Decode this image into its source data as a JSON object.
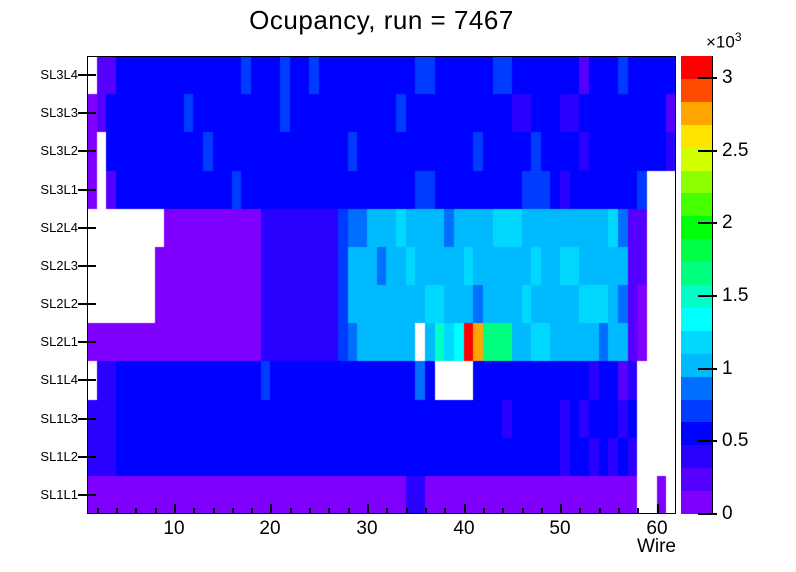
{
  "title": "Ocupancy, run = 7467",
  "chart_data": {
    "type": "heatmap",
    "title": "Ocupancy, run = 7467",
    "xlabel": "Wire",
    "x_range": [
      1,
      62
    ],
    "x_major_ticks": [
      10,
      20,
      30,
      40,
      50,
      60
    ],
    "x_minor_tick_step": 2,
    "grid": false,
    "empty_bins_color": "#ffffff",
    "frame_color": "#000000",
    "background_color": "#ffffff",
    "colorbar": {
      "scale_label_base": "×10",
      "scale_label_exp": "3",
      "tick_labels": [
        "0",
        "0.5",
        "1",
        "1.5",
        "2",
        "2.5",
        "3"
      ],
      "tick_values": [
        0,
        500,
        1000,
        1500,
        2000,
        2500,
        3000
      ],
      "zmin": 0,
      "zmax": 3150,
      "palette_bottom_to_top": [
        "#7f00ff",
        "#5500ff",
        "#2a00ff",
        "#0002ff",
        "#003cff",
        "#006eff",
        "#00baff",
        "#00d8ff",
        "#00ffff",
        "#00ffc8",
        "#00ff7f",
        "#00ff46",
        "#00ff0b",
        "#46ff00",
        "#8cff00",
        "#d2ff00",
        "#ffe400",
        "#ffa500",
        "#ff4b00",
        "#ff0000"
      ]
    },
    "rows": [
      {
        "label": "SL3L4",
        "values": [
          null,
          250,
          250,
          560,
          560,
          560,
          560,
          560,
          560,
          560,
          560,
          560,
          560,
          560,
          560,
          560,
          720,
          560,
          560,
          560,
          720,
          560,
          560,
          720,
          560,
          560,
          560,
          560,
          560,
          560,
          560,
          560,
          560,
          560,
          720,
          720,
          560,
          560,
          560,
          560,
          560,
          560,
          720,
          720,
          560,
          560,
          560,
          560,
          560,
          560,
          560,
          250,
          560,
          560,
          560,
          720,
          560,
          560,
          560,
          560,
          560
        ]
      },
      {
        "label": "SL3L3",
        "values": [
          80,
          250,
          560,
          560,
          560,
          560,
          560,
          560,
          560,
          560,
          720,
          560,
          560,
          560,
          560,
          560,
          560,
          560,
          560,
          560,
          720,
          560,
          560,
          560,
          560,
          560,
          560,
          560,
          560,
          560,
          560,
          560,
          720,
          560,
          560,
          560,
          560,
          560,
          560,
          560,
          560,
          560,
          560,
          560,
          400,
          400,
          560,
          560,
          560,
          400,
          400,
          560,
          560,
          560,
          560,
          560,
          560,
          560,
          560,
          560,
          250
        ]
      },
      {
        "label": "SL3L2",
        "values": [
          80,
          null,
          560,
          560,
          560,
          560,
          560,
          560,
          560,
          560,
          560,
          560,
          720,
          560,
          560,
          560,
          560,
          560,
          560,
          560,
          560,
          560,
          560,
          560,
          560,
          560,
          560,
          720,
          560,
          560,
          560,
          560,
          560,
          560,
          560,
          560,
          560,
          560,
          560,
          560,
          720,
          560,
          560,
          560,
          560,
          560,
          720,
          560,
          560,
          560,
          560,
          400,
          560,
          560,
          560,
          560,
          560,
          560,
          560,
          560,
          400
        ]
      },
      {
        "label": "SL3L1",
        "values": [
          80,
          null,
          250,
          560,
          560,
          560,
          560,
          560,
          560,
          560,
          560,
          560,
          560,
          560,
          560,
          720,
          560,
          560,
          560,
          560,
          560,
          560,
          560,
          560,
          560,
          560,
          560,
          560,
          560,
          560,
          560,
          560,
          560,
          560,
          720,
          720,
          560,
          560,
          560,
          560,
          560,
          560,
          560,
          560,
          560,
          720,
          720,
          720,
          560,
          400,
          560,
          560,
          560,
          560,
          560,
          560,
          560,
          720,
          null,
          null,
          null
        ]
      },
      {
        "label": "SL2L4",
        "values": [
          null,
          null,
          null,
          null,
          null,
          null,
          null,
          null,
          80,
          80,
          80,
          80,
          80,
          80,
          80,
          80,
          80,
          80,
          400,
          400,
          400,
          400,
          400,
          400,
          400,
          400,
          720,
          880,
          880,
          1050,
          1050,
          1050,
          1250,
          1050,
          1050,
          1050,
          1050,
          880,
          1050,
          1050,
          1050,
          1050,
          1250,
          1250,
          1250,
          1050,
          1050,
          1050,
          1050,
          1050,
          1050,
          1050,
          1050,
          1050,
          1250,
          880,
          250,
          250,
          null,
          null,
          null
        ]
      },
      {
        "label": "SL2L3",
        "values": [
          null,
          null,
          null,
          null,
          null,
          null,
          null,
          80,
          80,
          80,
          80,
          80,
          80,
          80,
          80,
          80,
          80,
          80,
          400,
          400,
          400,
          400,
          400,
          400,
          400,
          400,
          720,
          1050,
          1050,
          1050,
          880,
          1050,
          1050,
          1250,
          1050,
          1050,
          1050,
          1050,
          1050,
          1250,
          1050,
          1050,
          1050,
          1050,
          1050,
          1050,
          1250,
          1050,
          1050,
          1250,
          1250,
          1050,
          1050,
          1050,
          1050,
          1050,
          250,
          250,
          null,
          null,
          null
        ]
      },
      {
        "label": "SL2L2",
        "values": [
          null,
          null,
          null,
          null,
          null,
          null,
          null,
          80,
          80,
          80,
          80,
          80,
          80,
          80,
          80,
          80,
          80,
          80,
          400,
          400,
          400,
          400,
          400,
          400,
          400,
          400,
          720,
          1050,
          1050,
          1050,
          1050,
          1050,
          1050,
          1050,
          1050,
          1250,
          1250,
          1050,
          1050,
          1050,
          880,
          1050,
          1050,
          1050,
          1050,
          1250,
          1050,
          1050,
          1050,
          1050,
          1050,
          1250,
          1250,
          1250,
          1050,
          880,
          250,
          80,
          null,
          null,
          null
        ]
      },
      {
        "label": "SL2L1",
        "values": [
          80,
          80,
          80,
          80,
          80,
          80,
          80,
          80,
          80,
          80,
          80,
          80,
          80,
          80,
          80,
          80,
          80,
          80,
          400,
          400,
          400,
          400,
          400,
          400,
          400,
          400,
          720,
          880,
          1050,
          1050,
          1050,
          1050,
          1050,
          1050,
          null,
          1050,
          1500,
          1250,
          1350,
          3100,
          2800,
          1650,
          1650,
          1650,
          1050,
          1050,
          1250,
          1250,
          1050,
          1050,
          1050,
          1050,
          1050,
          880,
          1050,
          1050,
          250,
          80,
          null,
          null,
          null
        ]
      },
      {
        "label": "SL1L4",
        "values": [
          null,
          400,
          400,
          560,
          560,
          560,
          560,
          560,
          560,
          560,
          560,
          560,
          560,
          560,
          560,
          560,
          560,
          560,
          720,
          560,
          560,
          560,
          560,
          560,
          560,
          560,
          560,
          560,
          560,
          560,
          560,
          560,
          560,
          560,
          880,
          560,
          null,
          null,
          null,
          null,
          560,
          560,
          560,
          560,
          560,
          560,
          560,
          560,
          560,
          560,
          560,
          560,
          400,
          560,
          560,
          250,
          400,
          null,
          null,
          null,
          null
        ]
      },
      {
        "label": "SL1L3",
        "values": [
          400,
          400,
          400,
          560,
          560,
          560,
          560,
          560,
          560,
          560,
          560,
          560,
          560,
          560,
          560,
          560,
          560,
          560,
          560,
          560,
          560,
          560,
          560,
          560,
          560,
          560,
          560,
          560,
          560,
          560,
          560,
          560,
          560,
          560,
          560,
          560,
          560,
          560,
          560,
          560,
          560,
          560,
          560,
          400,
          560,
          560,
          560,
          560,
          560,
          400,
          560,
          400,
          560,
          560,
          560,
          400,
          560,
          null,
          null,
          null,
          null
        ]
      },
      {
        "label": "SL1L2",
        "values": [
          400,
          400,
          400,
          560,
          560,
          560,
          560,
          560,
          560,
          560,
          560,
          560,
          560,
          560,
          560,
          560,
          560,
          560,
          560,
          560,
          560,
          560,
          560,
          560,
          560,
          560,
          560,
          560,
          560,
          560,
          560,
          560,
          560,
          560,
          560,
          560,
          560,
          560,
          560,
          560,
          560,
          560,
          560,
          560,
          560,
          560,
          560,
          560,
          560,
          400,
          560,
          560,
          400,
          560,
          400,
          560,
          400,
          null,
          null,
          null,
          null
        ]
      },
      {
        "label": "SL1L1",
        "values": [
          120,
          120,
          120,
          120,
          120,
          120,
          120,
          120,
          120,
          120,
          120,
          120,
          120,
          120,
          120,
          120,
          120,
          120,
          120,
          120,
          120,
          120,
          120,
          120,
          120,
          120,
          120,
          120,
          120,
          120,
          120,
          120,
          120,
          400,
          400,
          120,
          120,
          120,
          120,
          120,
          120,
          120,
          120,
          120,
          120,
          120,
          120,
          120,
          120,
          120,
          120,
          120,
          120,
          120,
          120,
          120,
          120,
          null,
          null,
          120,
          null
        ]
      }
    ]
  }
}
